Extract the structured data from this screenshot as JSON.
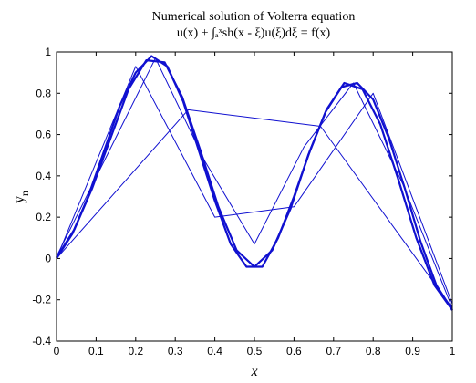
{
  "chart_data": {
    "type": "line",
    "title": "Numerical solution of Volterra equation",
    "subtitle": "u(x) + ∫ₐˣsh(x - ξ)u(ξ)dξ = f(x)",
    "xlabel": "x",
    "ylabel": "y",
    "ylabel_subscript": "n",
    "xlim": [
      0,
      1
    ],
    "ylim": [
      -0.4,
      1
    ],
    "xticks": [
      0,
      0.1,
      0.2,
      0.3,
      0.4,
      0.5,
      0.6,
      0.7,
      0.8,
      0.9,
      1
    ],
    "xtick_labels": [
      "0",
      "0.1",
      "0.2",
      "0.3",
      "0.4",
      "0.5",
      "0.6",
      "0.7",
      "0.8",
      "0.9",
      "1"
    ],
    "yticks": [
      -0.4,
      -0.2,
      0,
      0.2,
      0.4,
      0.6,
      0.8,
      1
    ],
    "ytick_labels": [
      "-0.4",
      "-0.2",
      "0",
      "0.2",
      "0.4",
      "0.6",
      "0.8",
      "1"
    ],
    "grid": false,
    "line_color": "#1010d0",
    "series": [
      {
        "x": [
          0,
          0.333,
          0.667,
          1
        ],
        "y": [
          0.0,
          0.72,
          0.64,
          -0.24
        ]
      },
      {
        "x": [
          0,
          0.2,
          0.4,
          0.6,
          0.8,
          1
        ],
        "y": [
          0.0,
          0.93,
          0.2,
          0.25,
          0.8,
          -0.22
        ]
      },
      {
        "x": [
          0,
          0.125,
          0.25,
          0.375,
          0.5,
          0.625,
          0.75,
          0.875,
          1
        ],
        "y": [
          0.01,
          0.49,
          0.97,
          0.47,
          0.07,
          0.54,
          0.85,
          0.36,
          -0.24
        ]
      },
      {
        "x": [
          0,
          0.045,
          0.09,
          0.136,
          0.182,
          0.227,
          0.273,
          0.318,
          0.364,
          0.409,
          0.455,
          0.5,
          0.545,
          0.591,
          0.636,
          0.682,
          0.727,
          0.773,
          0.818,
          0.864,
          0.909,
          0.955,
          1
        ],
        "y": [
          0.005,
          0.14,
          0.34,
          0.58,
          0.82,
          0.96,
          0.95,
          0.78,
          0.52,
          0.25,
          0.04,
          -0.04,
          0.04,
          0.24,
          0.5,
          0.72,
          0.85,
          0.82,
          0.65,
          0.38,
          0.1,
          -0.13,
          -0.25
        ]
      },
      {
        "x": [
          0,
          0.04,
          0.08,
          0.12,
          0.16,
          0.2,
          0.24,
          0.28,
          0.32,
          0.36,
          0.4,
          0.44,
          0.48,
          0.52,
          0.56,
          0.6,
          0.64,
          0.68,
          0.72,
          0.76,
          0.8,
          0.84,
          0.88,
          0.92,
          0.96,
          1
        ],
        "y": [
          0.0,
          0.12,
          0.3,
          0.52,
          0.74,
          0.9,
          0.98,
          0.93,
          0.76,
          0.52,
          0.28,
          0.07,
          -0.04,
          -0.04,
          0.1,
          0.3,
          0.52,
          0.71,
          0.83,
          0.85,
          0.77,
          0.58,
          0.34,
          0.08,
          -0.13,
          -0.25
        ]
      }
    ]
  }
}
